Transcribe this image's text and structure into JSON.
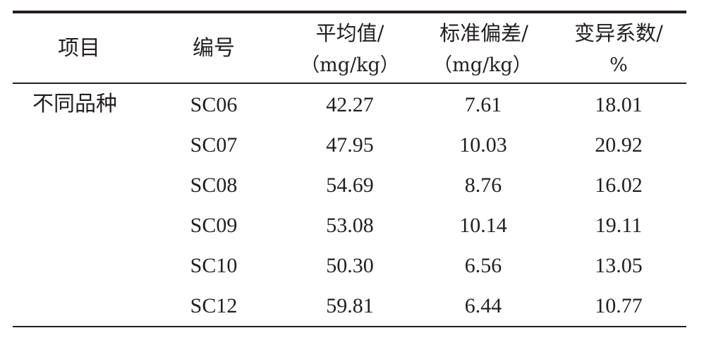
{
  "table": {
    "headers": {
      "item": "项目",
      "code": "编号",
      "mean": {
        "line1": "平均值/",
        "line2": "（mg/kg）"
      },
      "sd": {
        "line1": "标准偏差/",
        "line2": "（mg/kg）"
      },
      "cv": {
        "line1": "变异系数/",
        "line2": "%"
      }
    },
    "group_label": "不同品种",
    "rows": [
      {
        "code": "SC06",
        "mean": "42.27",
        "sd": "7.61",
        "cv": "18.01"
      },
      {
        "code": "SC07",
        "mean": "47.95",
        "sd": "10.03",
        "cv": "20.92"
      },
      {
        "code": "SC08",
        "mean": "54.69",
        "sd": "8.76",
        "cv": "16.02"
      },
      {
        "code": "SC09",
        "mean": "53.08",
        "sd": "10.14",
        "cv": "19.11"
      },
      {
        "code": "SC10",
        "mean": "50.30",
        "sd": "6.56",
        "cv": "13.05"
      },
      {
        "code": "SC12",
        "mean": "59.81",
        "sd": "6.44",
        "cv": "10.77"
      }
    ]
  }
}
